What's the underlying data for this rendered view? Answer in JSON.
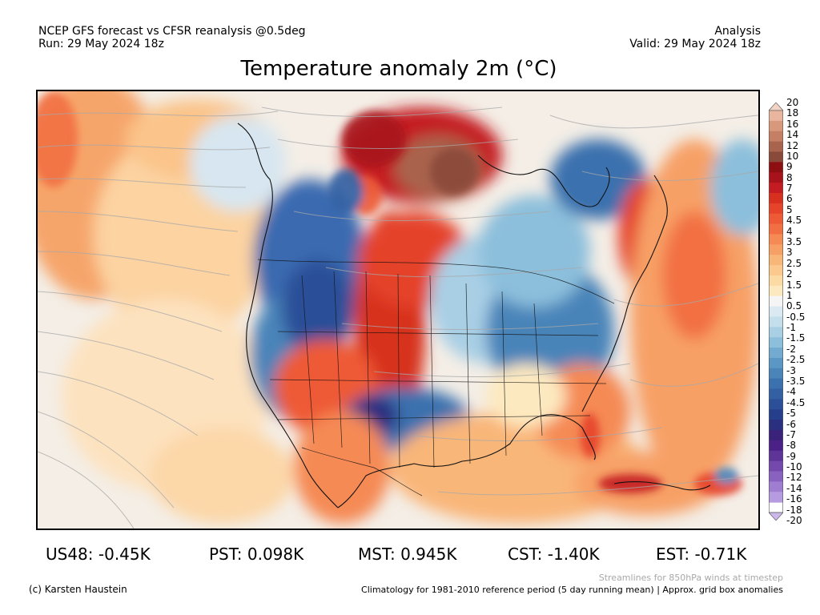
{
  "header": {
    "line1_left": "NCEP GFS forecast vs CFSR reanalysis @0.5deg",
    "line2_left": "Run: 29 May 2024 18z",
    "line1_right": "Analysis",
    "line2_right": "Valid: 29 May 2024 18z"
  },
  "title": "Temperature anomaly 2m (°C)",
  "colorbar": {
    "labels": [
      "20",
      "18",
      "16",
      "14",
      "12",
      "10",
      "9",
      "8",
      "7",
      "6",
      "5",
      "4.5",
      "4",
      "3.5",
      "3",
      "2.5",
      "2",
      "1.5",
      "1",
      "0.5",
      "-0.5",
      "-1",
      "-1.5",
      "-2",
      "-2.5",
      "-3",
      "-3.5",
      "-4",
      "-4.5",
      "-5",
      "-6",
      "-7",
      "-8",
      "-9",
      "-10",
      "-12",
      "-14",
      "-16",
      "-18",
      "-20"
    ],
    "colors": [
      "#f3d3c4",
      "#e9b59f",
      "#d8987c",
      "#c47f64",
      "#a9644e",
      "#8a4a3a",
      "#8e0f12",
      "#a8121a",
      "#c41c22",
      "#d7301f",
      "#e5432a",
      "#ee5a36",
      "#f26f43",
      "#f58a55",
      "#f7a066",
      "#f9b679",
      "#fbc98d",
      "#fcdaa3",
      "#fde9c0",
      "#f5f5f5",
      "#dbeaf2",
      "#c4deec",
      "#a9cfe5",
      "#8cbfdc",
      "#73abd0",
      "#5a97c4",
      "#4a84b9",
      "#3b71ae",
      "#3260a3",
      "#2b4f98",
      "#253f8c",
      "#2a2f80",
      "#3a2179",
      "#4c2187",
      "#5e3498",
      "#7448ad",
      "#8962c0",
      "#9f7ed1",
      "#b79be0",
      "#cdb8ec"
    ]
  },
  "stats": {
    "us48": "US48: -0.45K",
    "pst": "PST: 0.098K",
    "mst": "MST: 0.945K",
    "cst": "CST: -1.40K",
    "est": "EST: -0.71K"
  },
  "footer": {
    "streamline_note": "Streamlines for 850hPa winds at timestep",
    "credit": "(c) Karsten Haustein",
    "climatology": "Climatology for 1981-2010 reference period (5 day running mean) | Approx. grid box anomalies"
  }
}
